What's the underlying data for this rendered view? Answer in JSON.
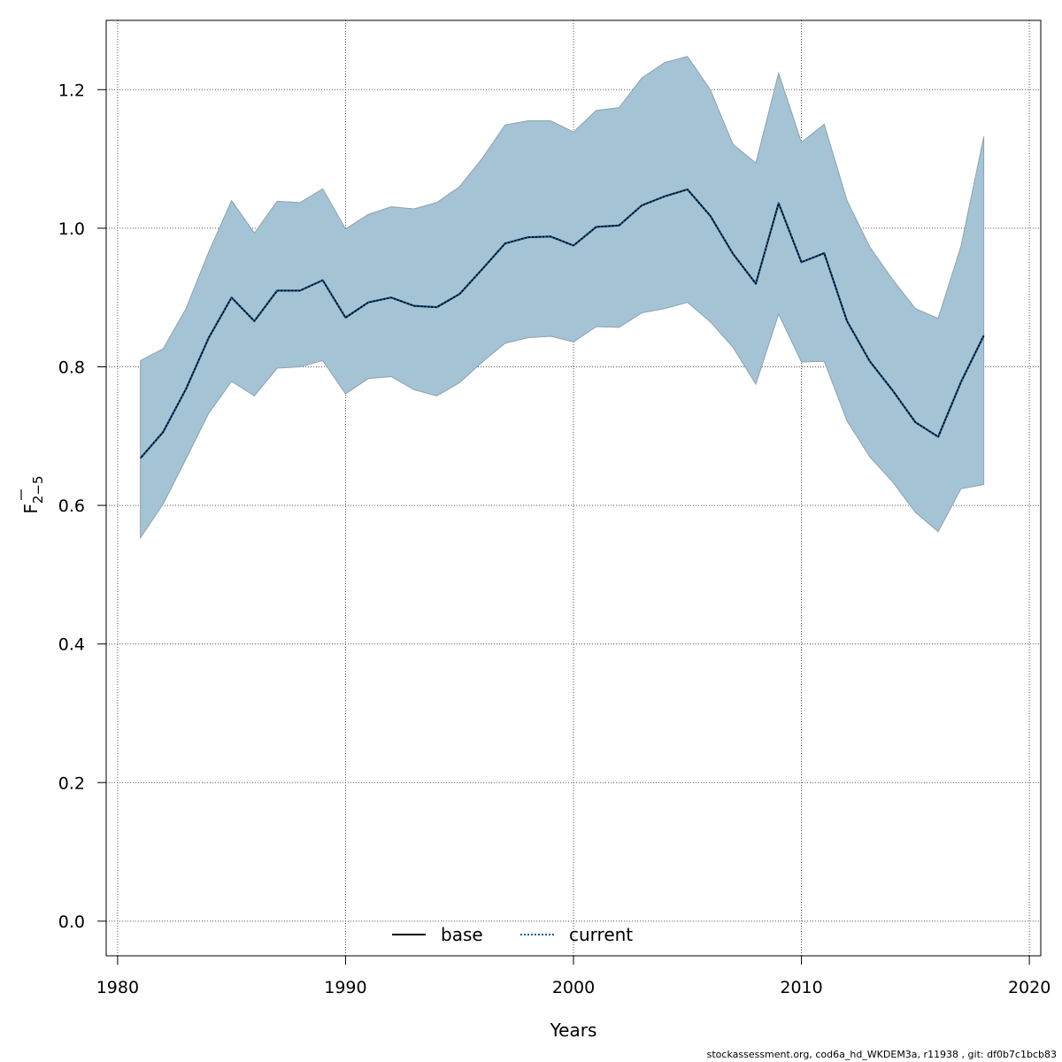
{
  "chart_data": {
    "type": "line",
    "xlabel": "Years",
    "ylabel": {
      "main": "F",
      "subscript": "2−5"
    },
    "xlim": [
      1979.5,
      2020.5
    ],
    "ylim": [
      -0.05,
      1.3
    ],
    "xticks": [
      "1980",
      "1990",
      "2000",
      "2010",
      "2020"
    ],
    "yticks": [
      "0.0",
      "0.2",
      "0.4",
      "0.6",
      "0.8",
      "1.0",
      "1.2"
    ],
    "grid": true,
    "legend_position": "bottom-center",
    "x": [
      1981,
      1982,
      1983,
      1984,
      1985,
      1986,
      1987,
      1988,
      1989,
      1990,
      1991,
      1992,
      1993,
      1994,
      1995,
      1996,
      1997,
      1998,
      1999,
      2000,
      2001,
      2002,
      2003,
      2004,
      2005,
      2006,
      2007,
      2008,
      2009,
      2010,
      2011,
      2012,
      2013,
      2014,
      2015,
      2016,
      2017,
      2018
    ],
    "series": [
      {
        "name": "base",
        "line_style": "solid",
        "color": "#000000",
        "values": [
          0.668,
          0.706,
          0.768,
          0.842,
          0.9,
          0.866,
          0.91,
          0.91,
          0.925,
          0.871,
          0.893,
          0.9,
          0.888,
          0.886,
          0.905,
          0.941,
          0.978,
          0.987,
          0.988,
          0.975,
          1.002,
          1.004,
          1.033,
          1.046,
          1.056,
          1.018,
          0.963,
          0.92,
          1.036,
          0.951,
          0.964,
          0.866,
          0.808,
          0.766,
          0.72,
          0.699,
          0.778,
          0.845
        ]
      },
      {
        "name": "current",
        "line_style": "dotted",
        "color": "#005b9a",
        "values": [
          0.668,
          0.706,
          0.768,
          0.842,
          0.9,
          0.866,
          0.91,
          0.91,
          0.925,
          0.871,
          0.893,
          0.9,
          0.888,
          0.886,
          0.905,
          0.941,
          0.978,
          0.987,
          0.988,
          0.975,
          1.002,
          1.004,
          1.033,
          1.046,
          1.056,
          1.018,
          0.963,
          0.92,
          1.036,
          0.951,
          0.964,
          0.866,
          0.808,
          0.766,
          0.72,
          0.699,
          0.778,
          0.845
        ]
      }
    ],
    "confidence_band": {
      "color": "#a4c3d5",
      "edge_color": "#8fa2ad",
      "lower": [
        0.553,
        0.602,
        0.667,
        0.733,
        0.779,
        0.758,
        0.798,
        0.8,
        0.809,
        0.761,
        0.783,
        0.786,
        0.767,
        0.758,
        0.777,
        0.807,
        0.834,
        0.842,
        0.844,
        0.836,
        0.858,
        0.857,
        0.878,
        0.884,
        0.893,
        0.865,
        0.828,
        0.775,
        0.876,
        0.807,
        0.808,
        0.722,
        0.67,
        0.634,
        0.59,
        0.562,
        0.624,
        0.63
      ],
      "upper": [
        0.809,
        0.826,
        0.884,
        0.966,
        1.04,
        0.993,
        1.039,
        1.037,
        1.057,
        0.999,
        1.02,
        1.031,
        1.028,
        1.037,
        1.06,
        1.101,
        1.149,
        1.155,
        1.155,
        1.139,
        1.17,
        1.174,
        1.217,
        1.239,
        1.248,
        1.2,
        1.121,
        1.094,
        1.224,
        1.124,
        1.15,
        1.04,
        0.973,
        0.926,
        0.884,
        0.87,
        0.974,
        1.132
      ]
    }
  },
  "footer": "stockassessment.org, cod6a_hd_WKDEM3a, r11938 , git: df0b7c1bcb83"
}
